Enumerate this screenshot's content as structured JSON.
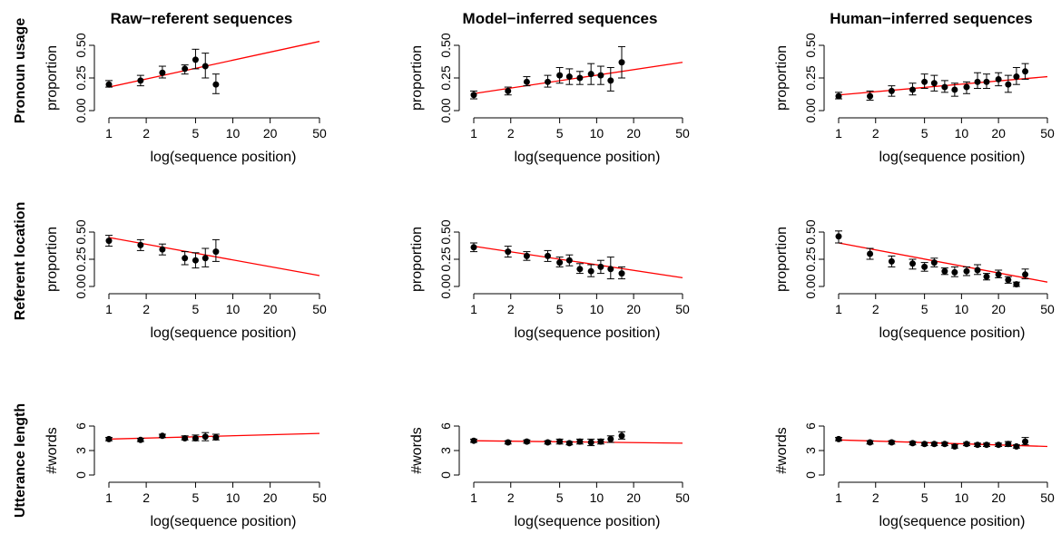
{
  "figure": {
    "columns": [
      "Raw−referent sequences",
      "Model−inferred sequences",
      "Human−inferred sequences"
    ],
    "rows": [
      "Pronoun usage",
      "Referent location",
      "Utterance length"
    ]
  },
  "colors": {
    "fit_line": "#ff0000",
    "points": "#000000",
    "axes": "#000000"
  },
  "chart_data": [
    {
      "type": "scatter",
      "row": 0,
      "col": 0,
      "xlabel": "log(sequence position)",
      "ylabel": "proportion",
      "xscale": "log",
      "xlim": [
        1,
        50
      ],
      "xticks": [
        "1",
        "2",
        "5",
        "10",
        "20",
        "50"
      ],
      "ylim": [
        0,
        0.5
      ],
      "yticks": [
        "0.00",
        "0.25",
        "0.50"
      ],
      "points": [
        [
          1,
          0.2,
          0.18,
          0.23
        ],
        [
          1.8,
          0.23,
          0.19,
          0.27
        ],
        [
          2.7,
          0.29,
          0.25,
          0.34
        ],
        [
          4.1,
          0.32,
          0.28,
          0.35
        ],
        [
          5,
          0.39,
          0.32,
          0.47
        ],
        [
          6,
          0.34,
          0.25,
          0.44
        ],
        [
          7.3,
          0.2,
          0.13,
          0.28
        ]
      ],
      "fit": [
        [
          1,
          0.18
        ],
        [
          50,
          0.53
        ]
      ]
    },
    {
      "type": "scatter",
      "row": 0,
      "col": 1,
      "xlabel": "log(sequence position)",
      "ylabel": "proportion",
      "xscale": "log",
      "xlim": [
        1,
        50
      ],
      "xticks": [
        "1",
        "2",
        "5",
        "10",
        "20",
        "50"
      ],
      "ylim": [
        0,
        0.5
      ],
      "yticks": [
        "0.00",
        "0.25",
        "0.50"
      ],
      "points": [
        [
          1,
          0.12,
          0.09,
          0.15
        ],
        [
          1.9,
          0.15,
          0.12,
          0.18
        ],
        [
          2.7,
          0.22,
          0.19,
          0.26
        ],
        [
          4,
          0.22,
          0.18,
          0.27
        ],
        [
          5,
          0.27,
          0.21,
          0.33
        ],
        [
          6,
          0.26,
          0.2,
          0.32
        ],
        [
          7.3,
          0.25,
          0.2,
          0.3
        ],
        [
          9,
          0.28,
          0.2,
          0.36
        ],
        [
          10.8,
          0.27,
          0.2,
          0.34
        ],
        [
          13,
          0.23,
          0.15,
          0.33
        ],
        [
          16,
          0.37,
          0.25,
          0.49
        ]
      ],
      "fit": [
        [
          1,
          0.13
        ],
        [
          50,
          0.37
        ]
      ]
    },
    {
      "type": "scatter",
      "row": 0,
      "col": 2,
      "xlabel": "log(sequence position)",
      "ylabel": "proportion",
      "xscale": "log",
      "xlim": [
        1,
        50
      ],
      "xticks": [
        "1",
        "2",
        "5",
        "10",
        "20",
        "50"
      ],
      "ylim": [
        0,
        0.5
      ],
      "yticks": [
        "0.00",
        "0.25",
        "0.50"
      ],
      "points": [
        [
          1,
          0.11,
          0.09,
          0.14
        ],
        [
          1.8,
          0.11,
          0.08,
          0.15
        ],
        [
          2.7,
          0.15,
          0.11,
          0.19
        ],
        [
          4,
          0.16,
          0.12,
          0.21
        ],
        [
          5,
          0.22,
          0.17,
          0.28
        ],
        [
          6,
          0.21,
          0.15,
          0.27
        ],
        [
          7.3,
          0.18,
          0.14,
          0.23
        ],
        [
          8.8,
          0.16,
          0.11,
          0.21
        ],
        [
          11,
          0.18,
          0.13,
          0.22
        ],
        [
          13.5,
          0.22,
          0.17,
          0.29
        ],
        [
          16,
          0.22,
          0.17,
          0.28
        ],
        [
          20,
          0.24,
          0.19,
          0.29
        ],
        [
          24,
          0.2,
          0.14,
          0.27
        ],
        [
          28,
          0.26,
          0.2,
          0.33
        ],
        [
          33,
          0.3,
          0.24,
          0.36
        ]
      ],
      "fit": [
        [
          1,
          0.12
        ],
        [
          50,
          0.26
        ]
      ]
    },
    {
      "type": "scatter",
      "row": 1,
      "col": 0,
      "xlabel": "log(sequence position)",
      "ylabel": "proportion",
      "xscale": "log",
      "xlim": [
        1,
        50
      ],
      "xticks": [
        "1",
        "2",
        "5",
        "10",
        "20",
        "50"
      ],
      "ylim": [
        0,
        0.5
      ],
      "yticks": [
        "0.00",
        "0.25",
        "0.50"
      ],
      "points": [
        [
          1,
          0.42,
          0.37,
          0.47
        ],
        [
          1.8,
          0.38,
          0.33,
          0.43
        ],
        [
          2.7,
          0.34,
          0.29,
          0.39
        ],
        [
          4.1,
          0.26,
          0.2,
          0.32
        ],
        [
          5,
          0.24,
          0.17,
          0.31
        ],
        [
          6,
          0.26,
          0.18,
          0.35
        ],
        [
          7.3,
          0.32,
          0.23,
          0.43
        ]
      ],
      "fit": [
        [
          1,
          0.45
        ],
        [
          50,
          0.1
        ]
      ]
    },
    {
      "type": "scatter",
      "row": 1,
      "col": 1,
      "xlabel": "log(sequence position)",
      "ylabel": "proportion",
      "xscale": "log",
      "xlim": [
        1,
        50
      ],
      "xticks": [
        "1",
        "2",
        "5",
        "10",
        "20",
        "50"
      ],
      "ylim": [
        0,
        0.5
      ],
      "yticks": [
        "0.00",
        "0.25",
        "0.50"
      ],
      "points": [
        [
          1,
          0.36,
          0.32,
          0.4
        ],
        [
          1.9,
          0.32,
          0.27,
          0.37
        ],
        [
          2.7,
          0.28,
          0.24,
          0.32
        ],
        [
          4,
          0.28,
          0.23,
          0.33
        ],
        [
          5,
          0.22,
          0.18,
          0.27
        ],
        [
          6,
          0.24,
          0.19,
          0.29
        ],
        [
          7.3,
          0.16,
          0.12,
          0.21
        ],
        [
          9,
          0.14,
          0.09,
          0.2
        ],
        [
          10.8,
          0.18,
          0.12,
          0.24
        ],
        [
          13,
          0.16,
          0.07,
          0.27
        ],
        [
          16,
          0.12,
          0.07,
          0.18
        ]
      ],
      "fit": [
        [
          1,
          0.37
        ],
        [
          50,
          0.08
        ]
      ]
    },
    {
      "type": "scatter",
      "row": 1,
      "col": 2,
      "xlabel": "log(sequence position)",
      "ylabel": "proportion",
      "xscale": "log",
      "xlim": [
        1,
        50
      ],
      "xticks": [
        "1",
        "2",
        "5",
        "10",
        "20",
        "50"
      ],
      "ylim": [
        0,
        0.5
      ],
      "yticks": [
        "0.00",
        "0.25",
        "0.50"
      ],
      "points": [
        [
          1,
          0.46,
          0.4,
          0.51
        ],
        [
          1.8,
          0.3,
          0.25,
          0.35
        ],
        [
          2.7,
          0.23,
          0.18,
          0.28
        ],
        [
          4,
          0.21,
          0.16,
          0.25
        ],
        [
          5,
          0.18,
          0.14,
          0.22
        ],
        [
          6,
          0.22,
          0.18,
          0.26
        ],
        [
          7.3,
          0.14,
          0.11,
          0.17
        ],
        [
          8.8,
          0.13,
          0.09,
          0.18
        ],
        [
          11,
          0.14,
          0.1,
          0.18
        ],
        [
          13.5,
          0.15,
          0.11,
          0.2
        ],
        [
          16,
          0.09,
          0.06,
          0.12
        ],
        [
          20,
          0.11,
          0.08,
          0.15
        ],
        [
          24,
          0.06,
          0.03,
          0.09
        ],
        [
          28,
          0.02,
          0.0,
          0.04
        ],
        [
          33,
          0.11,
          0.07,
          0.16
        ]
      ],
      "fit": [
        [
          1,
          0.4
        ],
        [
          50,
          0.04
        ]
      ]
    },
    {
      "type": "scatter",
      "row": 2,
      "col": 0,
      "xlabel": "log(sequence position)",
      "ylabel": "#words",
      "xscale": "log",
      "xlim": [
        1,
        50
      ],
      "xticks": [
        "1",
        "2",
        "5",
        "10",
        "20",
        "50"
      ],
      "ylim": [
        0,
        6
      ],
      "yticks": [
        "0",
        "3",
        "6"
      ],
      "points": [
        [
          1,
          4.4,
          4.2,
          4.6
        ],
        [
          1.8,
          4.3,
          4.1,
          4.5
        ],
        [
          2.7,
          4.8,
          4.6,
          5.0
        ],
        [
          4.1,
          4.5,
          4.3,
          4.8
        ],
        [
          5,
          4.5,
          4.2,
          4.9
        ],
        [
          6,
          4.7,
          4.2,
          5.2
        ],
        [
          7.3,
          4.6,
          4.3,
          5.0
        ]
      ],
      "fit": [
        [
          1,
          4.4
        ],
        [
          50,
          5.1
        ]
      ]
    },
    {
      "type": "scatter",
      "row": 2,
      "col": 1,
      "xlabel": "log(sequence position)",
      "ylabel": "#words",
      "xscale": "log",
      "xlim": [
        1,
        50
      ],
      "xticks": [
        "1",
        "2",
        "5",
        "10",
        "20",
        "50"
      ],
      "ylim": [
        0,
        6
      ],
      "yticks": [
        "0",
        "3",
        "6"
      ],
      "points": [
        [
          1,
          4.2,
          4.0,
          4.4
        ],
        [
          1.9,
          4.0,
          3.8,
          4.2
        ],
        [
          2.7,
          4.1,
          3.9,
          4.3
        ],
        [
          4,
          4.0,
          3.8,
          4.2
        ],
        [
          5,
          4.1,
          3.8,
          4.4
        ],
        [
          6,
          3.9,
          3.7,
          4.1
        ],
        [
          7.3,
          4.1,
          3.8,
          4.4
        ],
        [
          9,
          4.0,
          3.6,
          4.4
        ],
        [
          10.8,
          4.1,
          3.8,
          4.4
        ],
        [
          13,
          4.4,
          4.0,
          4.8
        ],
        [
          16,
          4.8,
          4.4,
          5.3
        ]
      ],
      "fit": [
        [
          1,
          4.2
        ],
        [
          50,
          3.9
        ]
      ]
    },
    {
      "type": "scatter",
      "row": 2,
      "col": 2,
      "xlabel": "log(sequence position)",
      "ylabel": "#words",
      "xscale": "log",
      "xlim": [
        1,
        50
      ],
      "xticks": [
        "1",
        "2",
        "5",
        "10",
        "20",
        "50"
      ],
      "ylim": [
        0,
        6
      ],
      "yticks": [
        "0",
        "3",
        "6"
      ],
      "points": [
        [
          1,
          4.4,
          4.2,
          4.6
        ],
        [
          1.8,
          4.0,
          3.8,
          4.2
        ],
        [
          2.7,
          4.0,
          3.8,
          4.2
        ],
        [
          4,
          3.9,
          3.7,
          4.1
        ],
        [
          5,
          3.8,
          3.6,
          4.0
        ],
        [
          6,
          3.8,
          3.6,
          4.0
        ],
        [
          7.3,
          3.8,
          3.6,
          4.0
        ],
        [
          8.8,
          3.5,
          3.3,
          3.7
        ],
        [
          11,
          3.8,
          3.6,
          4.0
        ],
        [
          13.5,
          3.7,
          3.5,
          3.9
        ],
        [
          16,
          3.7,
          3.5,
          3.9
        ],
        [
          20,
          3.7,
          3.5,
          3.9
        ],
        [
          24,
          3.8,
          3.5,
          4.1
        ],
        [
          28,
          3.5,
          3.3,
          3.7
        ],
        [
          33,
          4.1,
          3.7,
          4.6
        ]
      ],
      "fit": [
        [
          1,
          4.3
        ],
        [
          50,
          3.5
        ]
      ]
    }
  ]
}
